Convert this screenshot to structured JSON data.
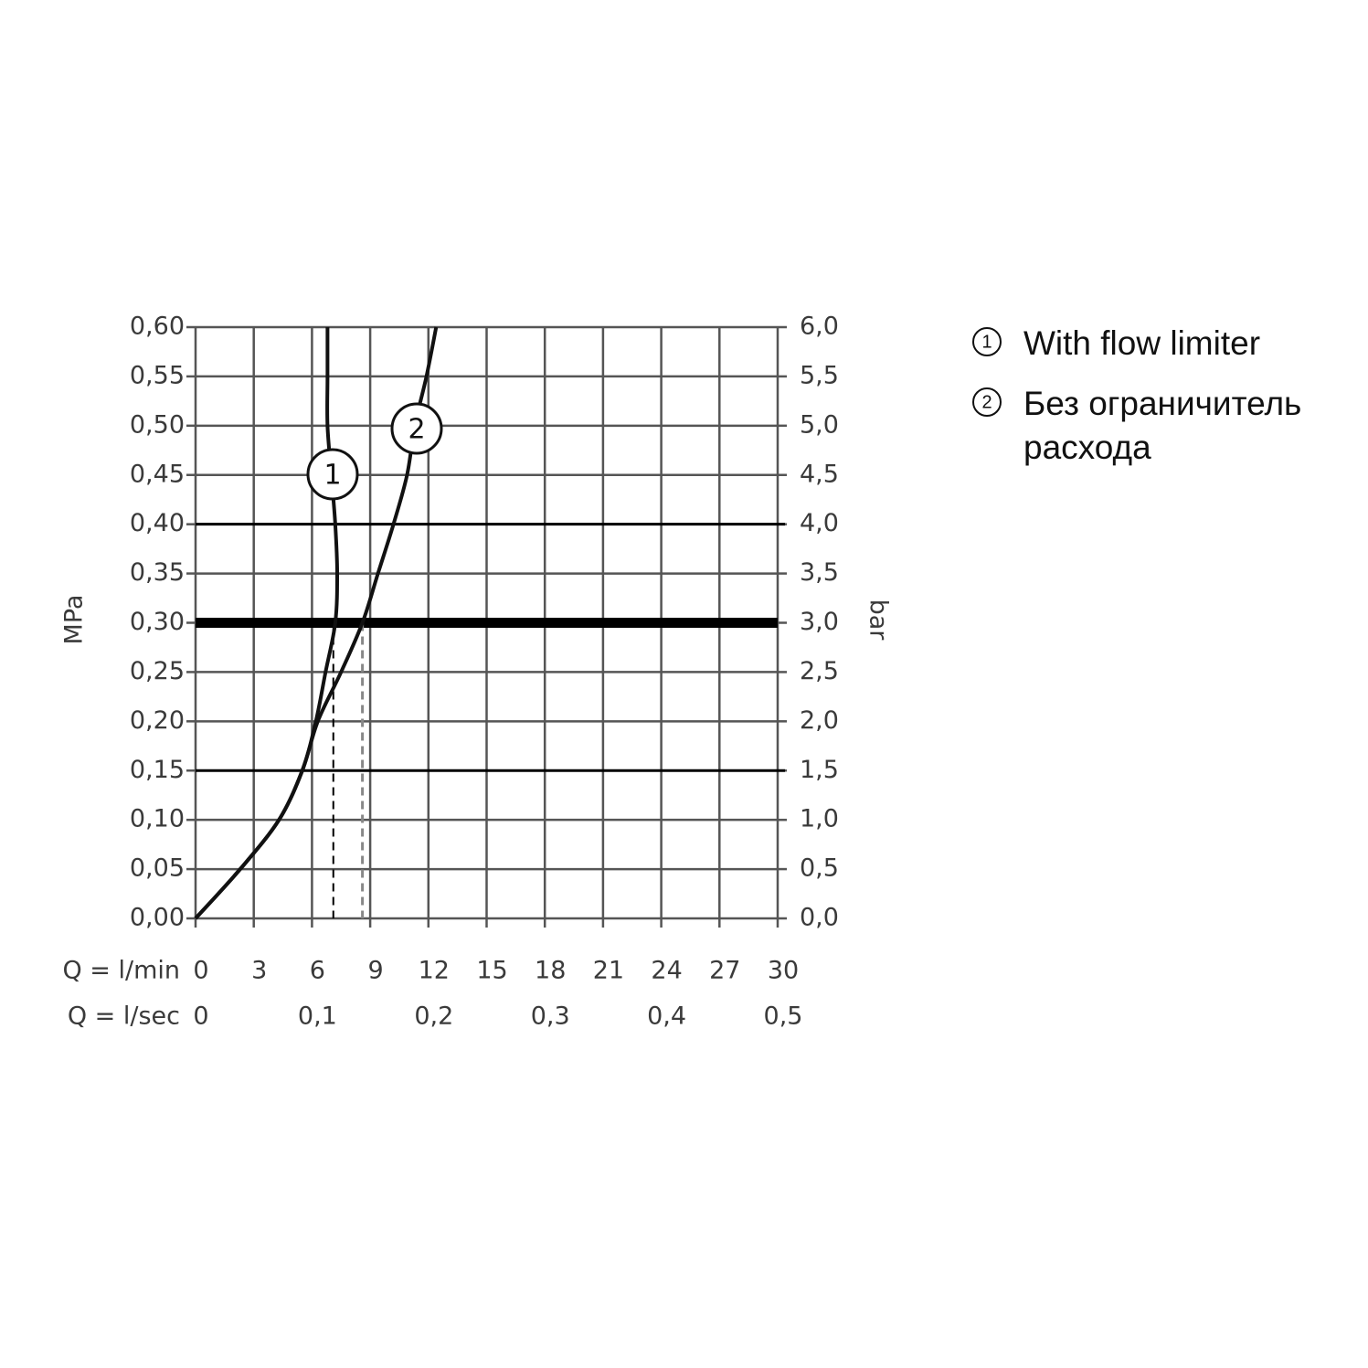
{
  "chart_data": {
    "type": "line",
    "x_label": "Q = l/min",
    "x2_label": "Q = l/sec",
    "y_label": "MPa",
    "y2_label": "bar",
    "xlim": [
      0,
      30
    ],
    "xticks": [
      0,
      3,
      6,
      9,
      12,
      15,
      18,
      21,
      24,
      27,
      30
    ],
    "x2lim": [
      0,
      0.5
    ],
    "x2ticks": [
      0,
      {
        "value": 0.1,
        "label": "0,1"
      },
      {
        "value": 0.2,
        "label": "0,2"
      },
      {
        "value": 0.3,
        "label": "0,3"
      },
      {
        "value": 0.4,
        "label": "0,4"
      },
      {
        "value": 0.5,
        "label": "0,5"
      }
    ],
    "ylim": [
      0,
      0.6
    ],
    "yticks": [
      {
        "value": 0,
        "label": "0,00"
      },
      {
        "value": 0.05,
        "label": "0,05"
      },
      {
        "value": 0.1,
        "label": "0,10"
      },
      {
        "value": 0.15,
        "label": "0,15"
      },
      {
        "value": 0.2,
        "label": "0,20"
      },
      {
        "value": 0.25,
        "label": "0,25"
      },
      {
        "value": 0.3,
        "label": "0,30"
      },
      {
        "value": 0.35,
        "label": "0,35"
      },
      {
        "value": 0.4,
        "label": "0,40"
      },
      {
        "value": 0.45,
        "label": "0,45"
      },
      {
        "value": 0.5,
        "label": "0,50"
      },
      {
        "value": 0.55,
        "label": "0,55"
      },
      {
        "value": 0.6,
        "label": "0,60"
      }
    ],
    "y2lim": [
      0,
      6
    ],
    "y2ticks": [
      {
        "value": 0,
        "label": "0,0"
      },
      {
        "value": 0.5,
        "label": "0,5"
      },
      {
        "value": 1,
        "label": "1,0"
      },
      {
        "value": 1.5,
        "label": "1,5"
      },
      {
        "value": 2,
        "label": "2,0"
      },
      {
        "value": 2.5,
        "label": "2,5"
      },
      {
        "value": 3,
        "label": "3,0"
      },
      {
        "value": 3.5,
        "label": "3,5"
      },
      {
        "value": 4,
        "label": "4,0"
      },
      {
        "value": 4.5,
        "label": "4,5"
      },
      {
        "value": 5,
        "label": "5,0"
      },
      {
        "value": 5.5,
        "label": "5,5"
      },
      {
        "value": 6,
        "label": "6,0"
      }
    ],
    "grid": true,
    "bold_y": [
      0.15,
      0.4
    ],
    "highlight_y": 0.3,
    "dashed_x": [
      7.1,
      8.6
    ],
    "series": [
      {
        "name": "With flow limiter",
        "label": "1",
        "color": "#111111",
        "x": [
          0,
          2.3,
          4.3,
          5.5,
          6.2,
          6.7,
          7.2,
          7.3,
          7.2,
          7.0,
          6.8,
          6.8,
          6.8
        ],
        "values": [
          0,
          0.05,
          0.1,
          0.15,
          0.2,
          0.25,
          0.3,
          0.35,
          0.4,
          0.45,
          0.5,
          0.55,
          0.6
        ]
      },
      {
        "name": "Без ограничитель расхода",
        "label": "2",
        "color": "#111111",
        "x": [
          0,
          2.3,
          4.3,
          5.5,
          6.3,
          7.5,
          8.6,
          9.4,
          10.2,
          10.9,
          11.3,
          11.9,
          12.4
        ],
        "values": [
          0,
          0.05,
          0.1,
          0.15,
          0.2,
          0.25,
          0.3,
          0.35,
          0.4,
          0.45,
          0.5,
          0.55,
          0.6
        ]
      }
    ]
  }
}
